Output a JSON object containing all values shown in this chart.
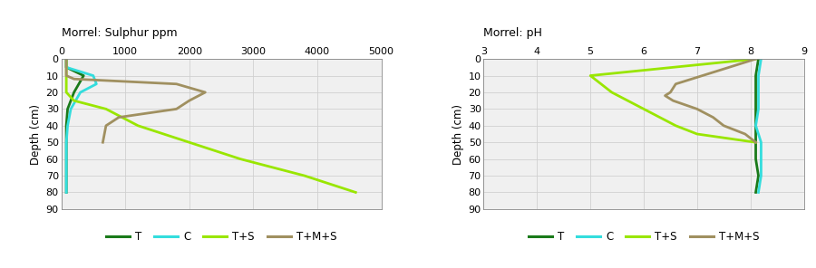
{
  "sulphur": {
    "title": "Morrel: Sulphur ppm",
    "xlim": [
      0,
      5000
    ],
    "xticks": [
      0,
      1000,
      2000,
      3000,
      4000,
      5000
    ],
    "xtick_labels": [
      "0",
      "1000",
      "2000",
      "3000",
      "4000",
      "5000"
    ],
    "ylim": [
      90,
      0
    ],
    "yticks": [
      0,
      10,
      20,
      30,
      40,
      50,
      60,
      70,
      80,
      90
    ],
    "ylabel": "Depth (cm)",
    "series": {
      "T": {
        "color": "#1a7a1a",
        "linewidth": 2.0,
        "depth": [
          0,
          5,
          10,
          20,
          30,
          40,
          50,
          60,
          70,
          80
        ],
        "values": [
          80,
          80,
          350,
          200,
          100,
          80,
          80,
          80,
          80,
          80
        ]
      },
      "C": {
        "color": "#33dddd",
        "linewidth": 2.0,
        "depth": [
          0,
          5,
          10,
          15,
          20,
          30,
          40,
          50,
          60,
          70,
          80
        ],
        "values": [
          80,
          80,
          500,
          550,
          300,
          150,
          100,
          80,
          80,
          80,
          80
        ]
      },
      "T+S": {
        "color": "#99e600",
        "linewidth": 2.0,
        "depth": [
          0,
          20,
          25,
          30,
          40,
          50,
          60,
          70,
          80
        ],
        "values": [
          80,
          80,
          200,
          700,
          1200,
          2000,
          2800,
          3800,
          4600
        ]
      },
      "T+M+S": {
        "color": "#a09060",
        "linewidth": 2.0,
        "depth": [
          0,
          10,
          12,
          15,
          20,
          25,
          30,
          35,
          40,
          50
        ],
        "values": [
          80,
          80,
          200,
          1800,
          2250,
          2000,
          1800,
          900,
          700,
          650
        ]
      }
    }
  },
  "ph": {
    "title": "Morrel: pH",
    "xlim": [
      3,
      9
    ],
    "xticks": [
      3,
      4,
      5,
      6,
      7,
      8,
      9
    ],
    "xtick_labels": [
      "3",
      "4",
      "5",
      "6",
      "7",
      "8",
      "9"
    ],
    "ylim": [
      90,
      0
    ],
    "yticks": [
      0,
      10,
      20,
      30,
      40,
      50,
      60,
      70,
      80,
      90
    ],
    "ylabel": "Depth (cm)",
    "series": {
      "T": {
        "color": "#1a7a1a",
        "linewidth": 2.0,
        "depth": [
          0,
          10,
          20,
          30,
          40,
          50,
          60,
          70,
          80
        ],
        "values": [
          8.15,
          8.1,
          8.1,
          8.1,
          8.1,
          8.1,
          8.1,
          8.15,
          8.1
        ]
      },
      "C": {
        "color": "#33dddd",
        "linewidth": 2.0,
        "depth": [
          0,
          10,
          20,
          30,
          40,
          50,
          60,
          70,
          80
        ],
        "values": [
          8.2,
          8.15,
          8.15,
          8.15,
          8.1,
          8.2,
          8.2,
          8.2,
          8.15
        ]
      },
      "T+S": {
        "color": "#99e600",
        "linewidth": 2.0,
        "depth": [
          0,
          10,
          20,
          25,
          30,
          35,
          40,
          45,
          50
        ],
        "values": [
          8.1,
          5.0,
          5.4,
          5.7,
          6.0,
          6.3,
          6.6,
          7.0,
          8.1
        ]
      },
      "T+M+S": {
        "color": "#a09060",
        "linewidth": 2.0,
        "depth": [
          0,
          10,
          15,
          20,
          22,
          25,
          30,
          35,
          40,
          45,
          50
        ],
        "values": [
          8.1,
          7.1,
          6.6,
          6.5,
          6.4,
          6.55,
          7.0,
          7.3,
          7.5,
          7.9,
          8.1
        ]
      }
    }
  },
  "legend": {
    "entries": [
      "T",
      "C",
      "T+S",
      "T+M+S"
    ],
    "colors": [
      "#1a7a1a",
      "#33dddd",
      "#99e600",
      "#a09060"
    ],
    "linewidth": 2.2
  },
  "background_color": "#ffffff",
  "grid_color": "#d0d0d0",
  "axes_bg_color": "#f0f0f0"
}
